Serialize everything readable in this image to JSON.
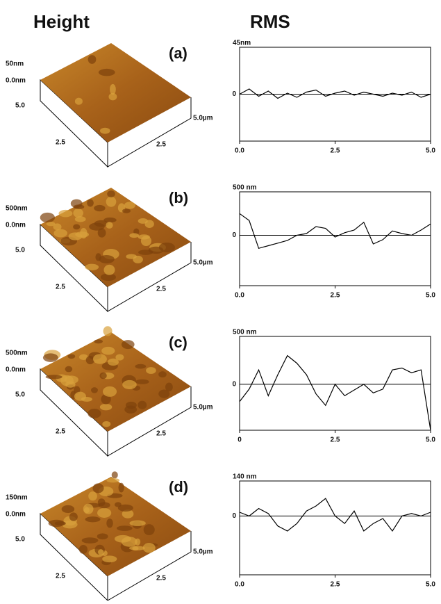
{
  "headers": {
    "height": "Height",
    "rms": "RMS"
  },
  "panels": [
    {
      "label": "(a)",
      "z_top": "50nm",
      "z_zero": "0.0nm",
      "depth_end": "5.0",
      "left_mid": "2.5",
      "right_mid": "2.5",
      "right_end": "5.0µm"
    },
    {
      "label": "(b)",
      "z_top": "500nm",
      "z_zero": "0.0nm",
      "depth_end": "5.0",
      "left_mid": "2.5",
      "right_mid": "2.5",
      "right_end": "5.0µm"
    },
    {
      "label": "(c)",
      "z_top": "500nm",
      "z_zero": "0.0nm",
      "depth_end": "5.0",
      "left_mid": "2.5",
      "right_mid": "2.5",
      "right_end": "5.0µm"
    },
    {
      "label": "(d)",
      "z_top": "150nm",
      "z_zero": "0.0nm",
      "depth_end": "5.0",
      "left_mid": "2.5",
      "right_mid": "2.5",
      "right_end": "5.0µm"
    }
  ],
  "chart_data": [
    {
      "type": "line",
      "y_label": "45nm",
      "color": "#000000",
      "x": [
        0,
        0.25,
        0.5,
        0.75,
        1,
        1.25,
        1.5,
        1.75,
        2,
        2.25,
        2.5,
        2.75,
        3,
        3.25,
        3.5,
        3.75,
        4,
        4.25,
        4.5,
        4.75,
        5
      ],
      "values": [
        0,
        5,
        -2,
        3,
        -4,
        1,
        -3,
        2,
        4,
        -2,
        1,
        3,
        -1,
        2,
        0,
        -2,
        1,
        -1,
        2,
        -3,
        0
      ],
      "xlim": [
        0,
        5
      ],
      "xticks": [
        {
          "value": 0,
          "label": "0.0"
        },
        2.5,
        {
          "value": 5,
          "label": "5.0"
        }
      ],
      "ylim": [
        -45,
        45
      ],
      "yticks": [
        0
      ]
    },
    {
      "type": "line",
      "y_label": "500 nm",
      "color": "#000000",
      "x": [
        0,
        0.25,
        0.5,
        0.75,
        1,
        1.25,
        1.5,
        1.75,
        2,
        2.25,
        2.5,
        2.75,
        3,
        3.25,
        3.5,
        3.75,
        4,
        4.25,
        4.5,
        4.75,
        5
      ],
      "values": [
        250,
        170,
        -150,
        -120,
        -90,
        -60,
        0,
        20,
        100,
        80,
        -20,
        30,
        60,
        150,
        -100,
        -50,
        50,
        20,
        0,
        60,
        130
      ],
      "xlim": [
        0,
        5
      ],
      "xticks": [
        {
          "value": 0,
          "label": "0.0"
        },
        2.5,
        {
          "value": 5,
          "label": "5.0"
        }
      ],
      "ylim": [
        -580,
        500
      ],
      "yticks": [
        0
      ]
    },
    {
      "type": "line",
      "y_label": "500 nm",
      "color": "#000000",
      "x": [
        0,
        0.25,
        0.5,
        0.75,
        1,
        1.25,
        1.5,
        1.75,
        2,
        2.25,
        2.5,
        2.75,
        3,
        3.25,
        3.5,
        3.75,
        4,
        4.25,
        4.5,
        4.75,
        5
      ],
      "values": [
        -180,
        -50,
        150,
        -120,
        100,
        300,
        220,
        100,
        -100,
        -220,
        0,
        -120,
        -60,
        0,
        -90,
        -50,
        150,
        170,
        120,
        150,
        -480
      ],
      "xlim": [
        0,
        5
      ],
      "xticks": [
        0,
        2.5,
        {
          "value": 5,
          "label": "5.0"
        }
      ],
      "ylim": [
        -480,
        500
      ],
      "yticks": [
        0
      ]
    },
    {
      "type": "line",
      "y_label": "140 nm",
      "color": "#000000",
      "x": [
        0,
        0.25,
        0.5,
        0.75,
        1,
        1.25,
        1.5,
        1.75,
        2,
        2.25,
        2.5,
        2.75,
        3,
        3.25,
        3.5,
        3.75,
        4,
        4.25,
        4.5,
        4.75,
        5
      ],
      "values": [
        15,
        0,
        30,
        10,
        -40,
        -60,
        -30,
        20,
        40,
        70,
        0,
        -30,
        20,
        -60,
        -30,
        -10,
        -60,
        0,
        10,
        0,
        15
      ],
      "xlim": [
        0,
        5
      ],
      "xticks": [
        {
          "value": 0,
          "label": "0.0"
        },
        2.5,
        {
          "value": 5,
          "label": "5.0"
        }
      ],
      "ylim": [
        -235,
        140
      ],
      "yticks": [
        0
      ]
    }
  ]
}
